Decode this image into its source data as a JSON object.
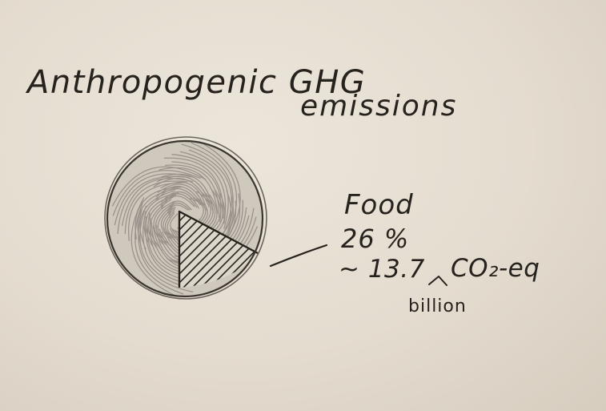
{
  "title": {
    "line1": "Anthropogenic GHG",
    "line2": "emissions"
  },
  "chart_data": {
    "type": "pie",
    "title": "Anthropogenic GHG emissions",
    "slices": [
      {
        "label": "Food",
        "value": 26,
        "fill": "hatched"
      },
      {
        "label": "",
        "value": 74,
        "fill": "scribbled"
      }
    ]
  },
  "annotation": {
    "label": "Food",
    "percent": "26 %",
    "amount": "~ 13.7",
    "unit": "CO₂-eq",
    "insert": "billion"
  },
  "colors": {
    "paper": "#e6dfd3",
    "ink": "#26221d",
    "pencil": "#8f8a83"
  }
}
